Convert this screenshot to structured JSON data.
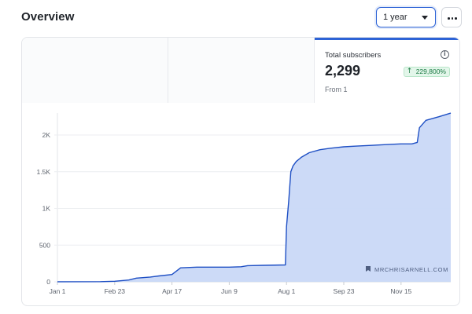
{
  "header": {
    "title": "Overview",
    "range_select": {
      "selected": "1 year"
    },
    "more_menu": {
      "icon": "more-horizontal-icon"
    }
  },
  "metrics": {
    "active": {
      "label": "Total subscribers",
      "value": "2,299",
      "change": "229,800%",
      "change_icon": "arrow-up-icon",
      "sub": "From 1",
      "info_icon": "info-icon"
    }
  },
  "watermark": "MRCHRISARNELL.COM",
  "colors": {
    "accent": "#2d63d6",
    "line": "#1e4fc4",
    "area": "#c9d8f7",
    "positive_badge_bg": "#e3f6ea",
    "positive_badge_text": "#1b7a44"
  },
  "chart_data": {
    "type": "area",
    "xlabel": "",
    "ylabel": "",
    "ylim": [
      0,
      2300
    ],
    "grid": true,
    "y_ticks": [
      0,
      500,
      1000,
      1500,
      2000
    ],
    "y_tick_labels": [
      "0",
      "500",
      "1K",
      "1.5K",
      "2K"
    ],
    "x_ticks": [
      "2023-01-01",
      "2023-02-23",
      "2023-04-17",
      "2023-06-09",
      "2023-08-01",
      "2023-09-23",
      "2023-11-15"
    ],
    "x_tick_labels": [
      "Jan 1",
      "Feb 23",
      "Apr 17",
      "Jun 9",
      "Aug 1",
      "Sep 23",
      "Nov 15"
    ],
    "xlim": [
      "2023-01-01",
      "2023-12-31"
    ],
    "series": [
      {
        "x": [
          "2023-01-01",
          "2023-02-10",
          "2023-02-23",
          "2023-03-08",
          "2023-03-15",
          "2023-03-28",
          "2023-04-05",
          "2023-04-17",
          "2023-04-25",
          "2023-05-10",
          "2023-06-09",
          "2023-06-20",
          "2023-06-26",
          "2023-07-10",
          "2023-07-31",
          "2023-08-01",
          "2023-08-03",
          "2023-08-05",
          "2023-08-07",
          "2023-08-10",
          "2023-08-15",
          "2023-08-22",
          "2023-09-01",
          "2023-09-10",
          "2023-09-23",
          "2023-10-05",
          "2023-10-20",
          "2023-11-01",
          "2023-11-15",
          "2023-11-25",
          "2023-11-30",
          "2023-12-02",
          "2023-12-08",
          "2023-12-20",
          "2023-12-31"
        ],
        "values": [
          1,
          2,
          8,
          25,
          50,
          65,
          80,
          100,
          190,
          200,
          200,
          205,
          220,
          225,
          230,
          750,
          1100,
          1500,
          1580,
          1640,
          1700,
          1760,
          1800,
          1820,
          1840,
          1850,
          1860,
          1870,
          1880,
          1880,
          1900,
          2100,
          2200,
          2250,
          2299
        ]
      }
    ]
  }
}
